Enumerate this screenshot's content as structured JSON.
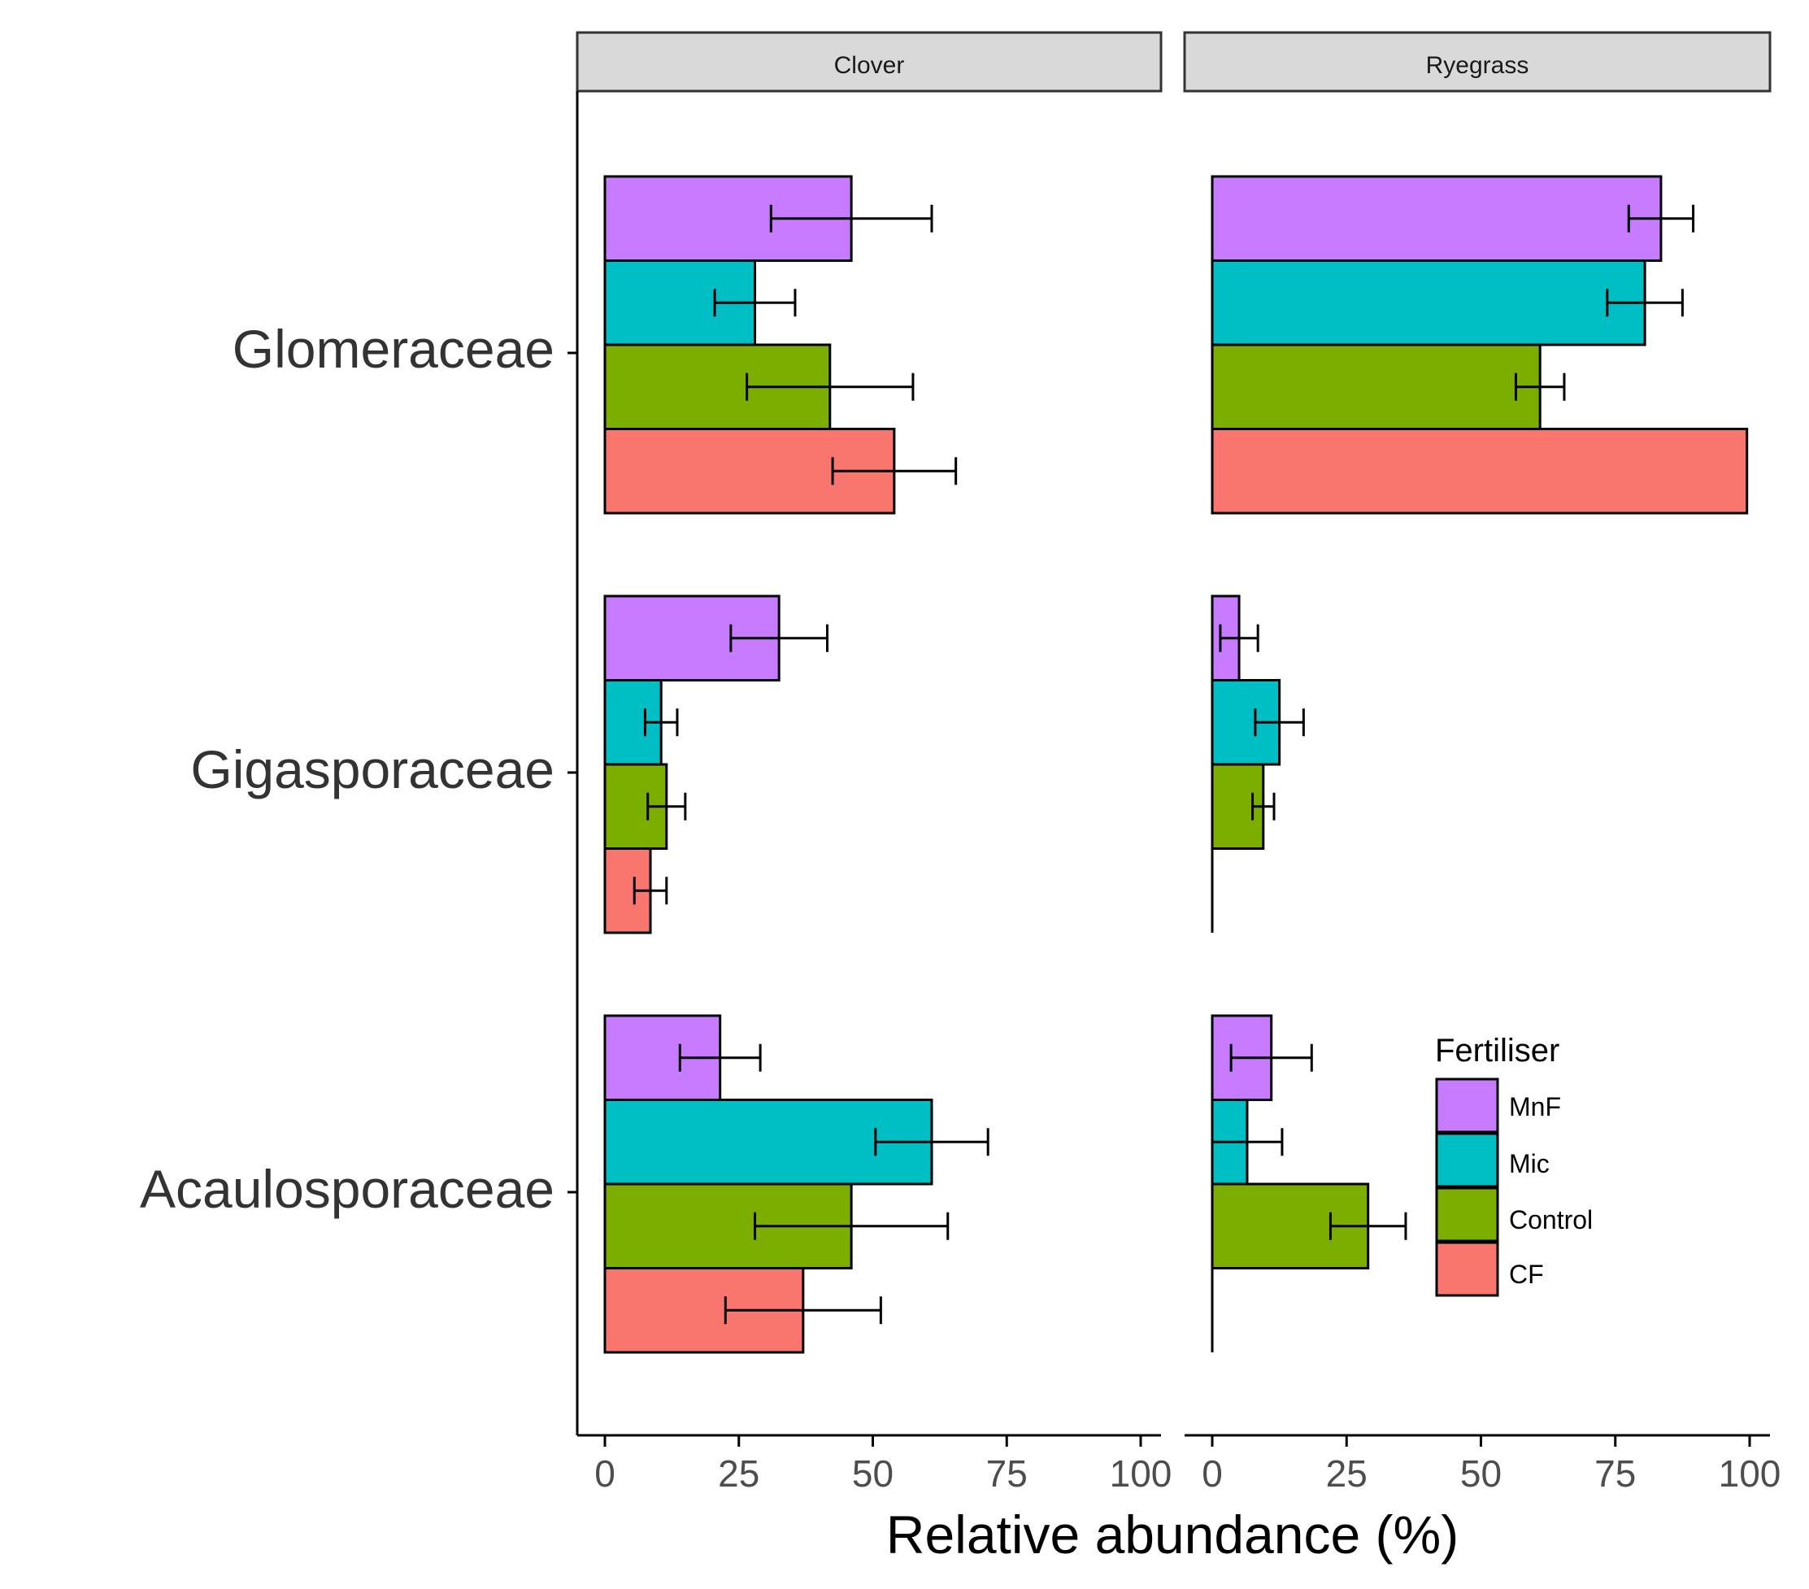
{
  "chart_data": {
    "type": "bar",
    "orientation": "horizontal",
    "facets": [
      "Clover",
      "Ryegrass"
    ],
    "categories": [
      "Glomeraceae",
      "Gigasporaceae",
      "Acaulosporaceae"
    ],
    "xlabel": "Relative abundance (%)",
    "xlim": [
      0,
      100
    ],
    "xticks": [
      0,
      25,
      50,
      75,
      100
    ],
    "legend": {
      "title": "Fertiliser",
      "position": "inside-bottom-right",
      "entries": [
        "MnF",
        "Mic",
        "Control",
        "CF"
      ]
    },
    "colors": {
      "MnF": "#C77CFF",
      "Mic": "#00BFC4",
      "Control": "#7CAE00",
      "CF": "#F8766D"
    },
    "series": {
      "Clover": {
        "MnF": {
          "values": [
            46,
            32.5,
            21.5
          ],
          "errors": [
            15,
            9,
            7.5
          ]
        },
        "Mic": {
          "values": [
            28,
            10.5,
            61
          ],
          "errors": [
            7.5,
            3,
            10.5
          ]
        },
        "Control": {
          "values": [
            42,
            11.5,
            46
          ],
          "errors": [
            15.5,
            3.5,
            18
          ]
        },
        "CF": {
          "values": [
            54,
            8.5,
            37
          ],
          "errors": [
            11.5,
            3,
            14.5
          ]
        }
      },
      "Ryegrass": {
        "MnF": {
          "values": [
            83.5,
            5,
            11
          ],
          "errors": [
            6,
            3.5,
            7.5
          ]
        },
        "Mic": {
          "values": [
            80.5,
            12.5,
            6.5
          ],
          "errors": [
            7,
            4.5,
            6.5
          ]
        },
        "Control": {
          "values": [
            61,
            9.5,
            29
          ],
          "errors": [
            4.5,
            2,
            7
          ]
        },
        "CF": {
          "values": [
            99.5,
            0,
            0
          ],
          "errors": [
            0,
            0,
            0
          ]
        }
      }
    }
  }
}
